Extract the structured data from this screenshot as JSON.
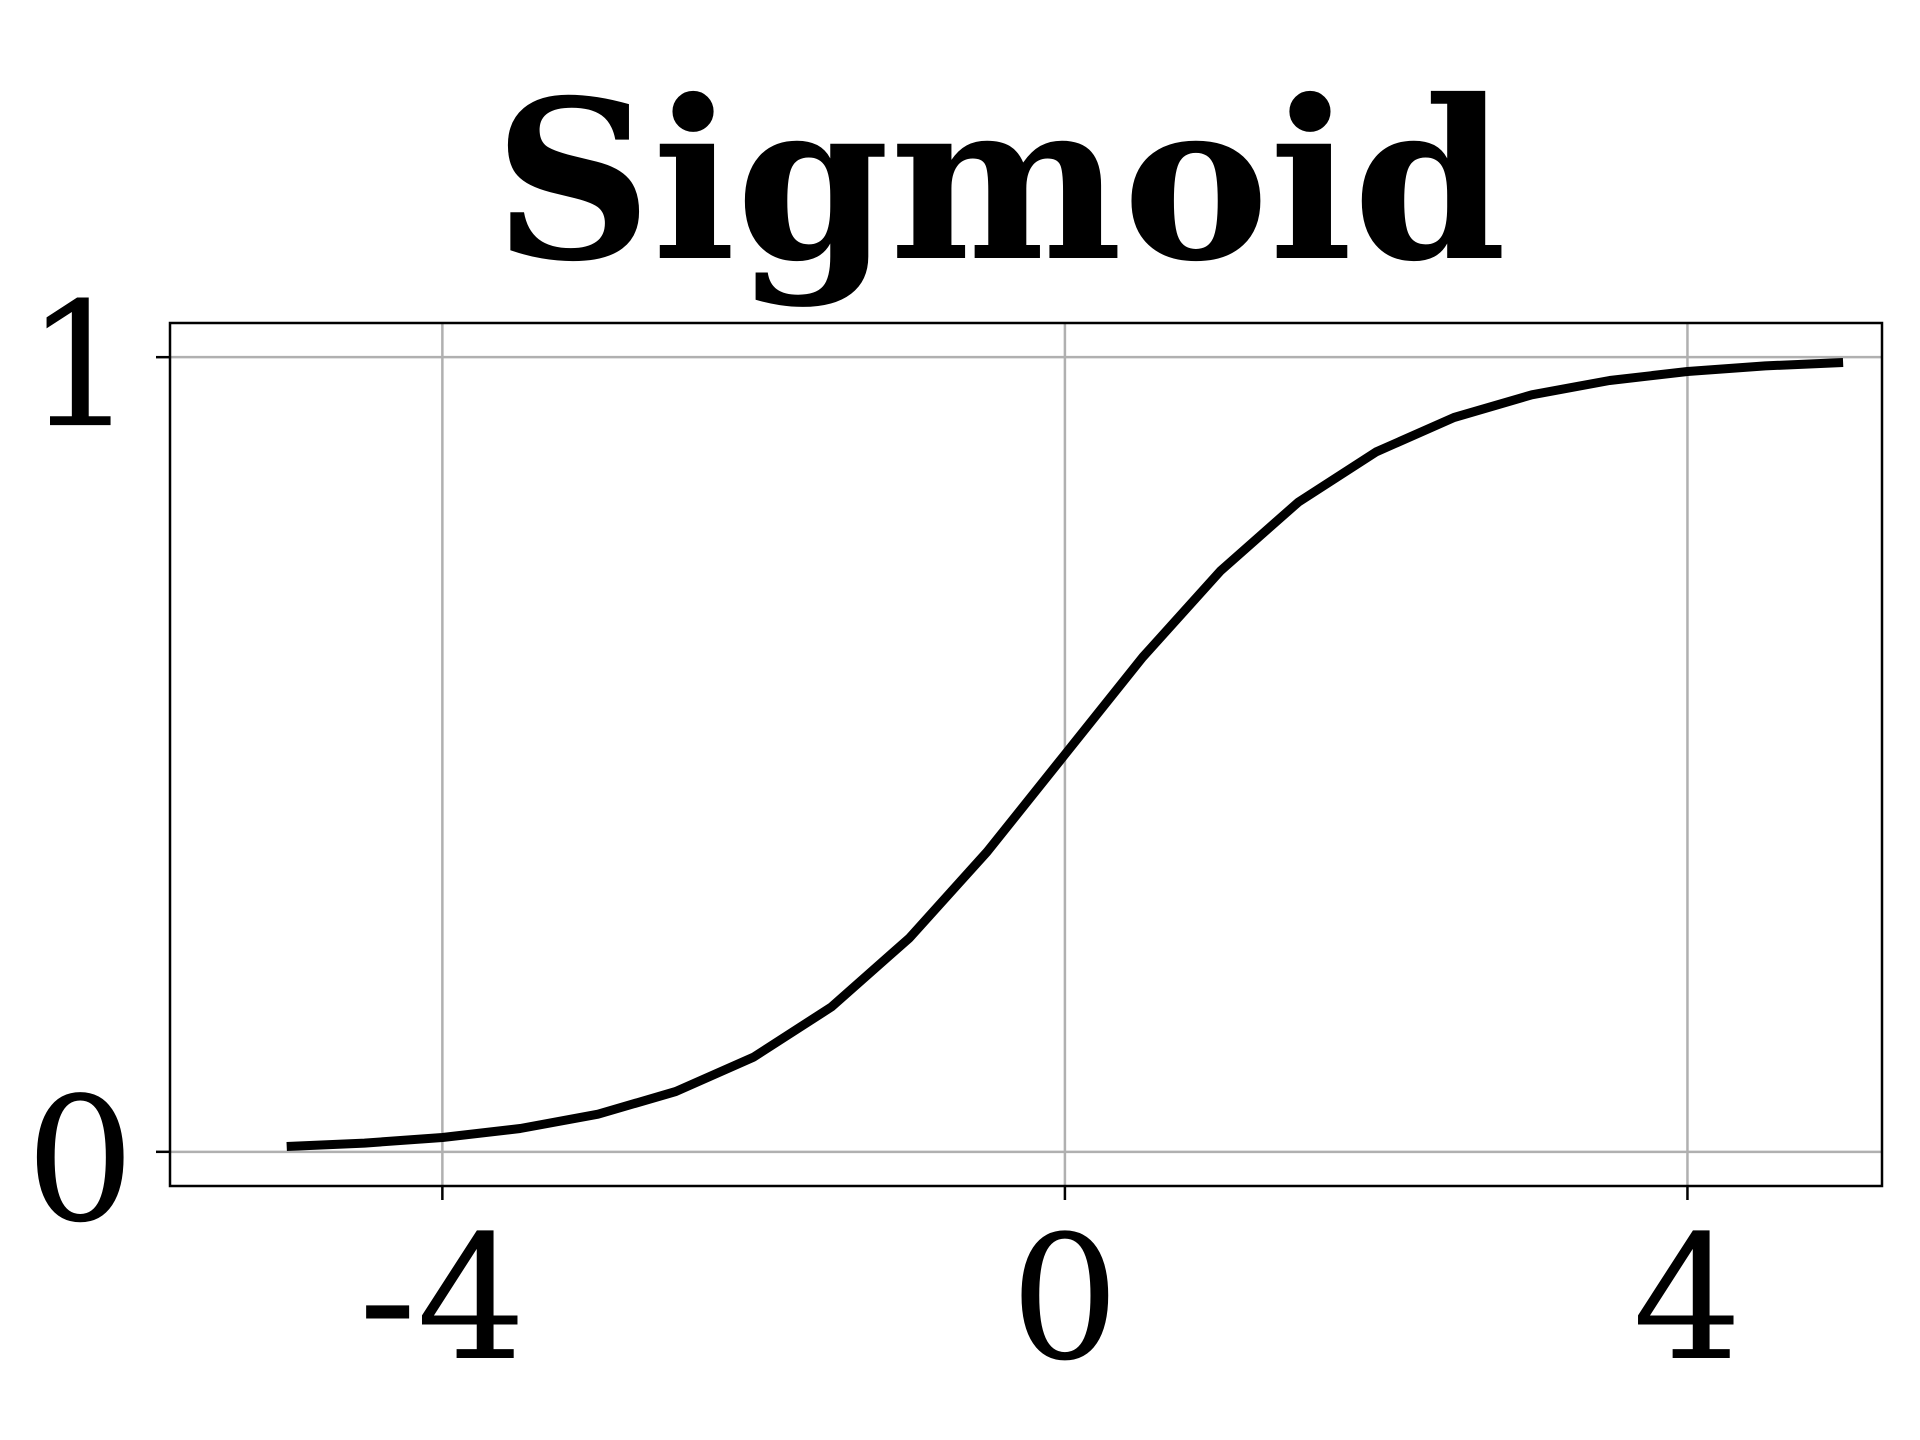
{
  "chart_data": {
    "type": "line",
    "title": "Sigmoid",
    "xlabel": "",
    "ylabel": "",
    "xlim": [
      -5.75,
      5.25
    ],
    "ylim": [
      -0.043,
      1.043
    ],
    "x_ticks": [
      -4,
      0,
      4
    ],
    "x_tick_labels": [
      "-4",
      "0",
      "4"
    ],
    "y_ticks": [
      0,
      1
    ],
    "y_tick_labels": [
      "0",
      "1"
    ],
    "grid": true,
    "legend": "none",
    "colors": {
      "line": "#000000",
      "grid": "#b0b0b0",
      "axes": "#000000"
    },
    "series": [
      {
        "x": [
          -5,
          -4.5,
          -4,
          -3.5,
          -3,
          -2.5,
          -2,
          -1.5,
          -1,
          -0.5,
          0,
          0.5,
          1,
          1.5,
          2,
          2.5,
          3,
          3.5,
          4,
          4.5,
          5
        ],
        "values": [
          0.0067,
          0.011,
          0.018,
          0.0293,
          0.0474,
          0.0759,
          0.1192,
          0.1824,
          0.2689,
          0.3775,
          0.5,
          0.6225,
          0.7311,
          0.8176,
          0.8808,
          0.9241,
          0.9526,
          0.9707,
          0.982,
          0.989,
          0.9933
        ]
      }
    ]
  }
}
